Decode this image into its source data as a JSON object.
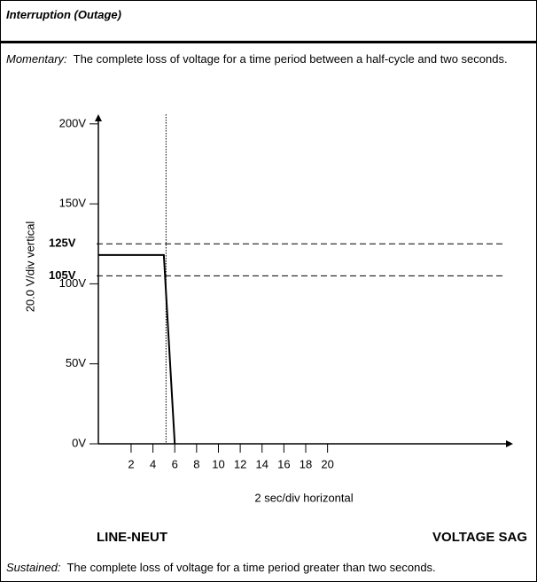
{
  "header": {
    "title": "Interruption (Outage)"
  },
  "momentary": {
    "term": "Momentary:",
    "text": "The complete loss of voltage for a time period between a half-cycle and two seconds."
  },
  "chart_data": {
    "type": "line",
    "y_label": "20.0 V/div vertical",
    "x_label": "2 sec/div horizontal",
    "x": [
      -1,
      5,
      6
    ],
    "series": [
      {
        "color": "#000000",
        "values": [
          118,
          118,
          0
        ]
      }
    ],
    "ylim": [
      0,
      206
    ],
    "yticks": [
      {
        "value": 0,
        "label": "0V"
      },
      {
        "value": 50,
        "label": "50V"
      },
      {
        "value": 100,
        "label": "100V"
      },
      {
        "value": 150,
        "label": "150V"
      },
      {
        "value": 200,
        "label": "200V"
      }
    ],
    "xlim": [
      -1,
      37
    ],
    "xticks": [
      2,
      4,
      6,
      8,
      10,
      12,
      14,
      16,
      18,
      20
    ],
    "limits": [
      {
        "value": 125,
        "label": "125V"
      },
      {
        "value": 105,
        "label": "105V"
      }
    ],
    "marker_x": 5.2
  },
  "footer": {
    "left": "LINE-NEUT",
    "right": "VOLTAGE SAG"
  },
  "sustained": {
    "term": "Sustained:",
    "text": "The complete loss of voltage for a time period greater than two seconds."
  }
}
